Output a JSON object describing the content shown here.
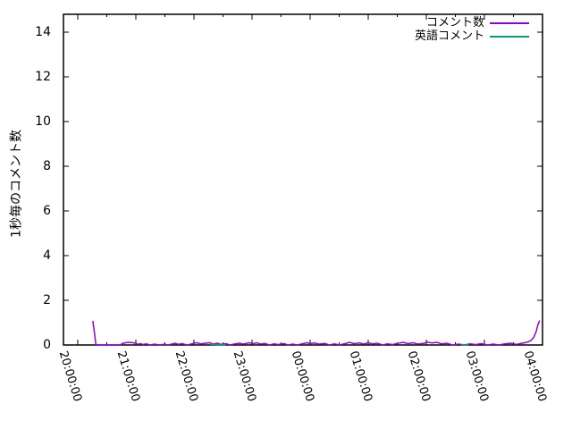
{
  "chart_data": {
    "type": "line",
    "title": "",
    "xlabel": "",
    "ylabel": "1秒毎のコメント数",
    "x_tick_labels": [
      "20:00:00",
      "21:00:00",
      "22:00:00",
      "23:00:00",
      "00:00:00",
      "01:00:00",
      "02:00:00",
      "03:00:00",
      "04:00:00"
    ],
    "y_tick_labels": [
      "0",
      "2",
      "4",
      "6",
      "8",
      "10",
      "12",
      "14"
    ],
    "ylim": [
      0,
      14.8
    ],
    "x_hours_range": [
      -0.25,
      8
    ],
    "grid": false,
    "legend_position": "top-right-inside",
    "series": [
      {
        "name": "コメント数",
        "color": "#9400d3",
        "points": [
          [
            0.26,
            1.08
          ],
          [
            0.285,
            0.6
          ],
          [
            0.31,
            0.05
          ],
          [
            0.33,
            0
          ],
          [
            0.5,
            0
          ],
          [
            0.74,
            0
          ],
          [
            0.76,
            0.06
          ],
          [
            0.82,
            0.1
          ],
          [
            0.88,
            0.12
          ],
          [
            0.95,
            0.1
          ],
          [
            1.0,
            0.08
          ],
          [
            1.03,
            0.03
          ],
          [
            1.08,
            0.06
          ],
          [
            1.12,
            0.02
          ],
          [
            1.18,
            0.05
          ],
          [
            1.25,
            0
          ],
          [
            1.32,
            0.04
          ],
          [
            1.4,
            0
          ],
          [
            1.48,
            0.03
          ],
          [
            1.55,
            0
          ],
          [
            1.62,
            0.04
          ],
          [
            1.68,
            0.08
          ],
          [
            1.73,
            0.03
          ],
          [
            1.8,
            0.06
          ],
          [
            1.88,
            0
          ],
          [
            1.95,
            0.04
          ],
          [
            2.0,
            0.08
          ],
          [
            2.05,
            0.1
          ],
          [
            2.12,
            0.05
          ],
          [
            2.2,
            0.08
          ],
          [
            2.28,
            0.1
          ],
          [
            2.33,
            0.04
          ],
          [
            2.4,
            0.08
          ],
          [
            2.47,
            0.03
          ],
          [
            2.55,
            0.06
          ],
          [
            2.62,
            0
          ],
          [
            2.7,
            0.05
          ],
          [
            2.78,
            0.08
          ],
          [
            2.85,
            0.04
          ],
          [
            2.95,
            0.1
          ],
          [
            3.02,
            0.06
          ],
          [
            3.08,
            0.1
          ],
          [
            3.15,
            0.04
          ],
          [
            3.22,
            0.07
          ],
          [
            3.3,
            0
          ],
          [
            3.38,
            0.05
          ],
          [
            3.45,
            0.02
          ],
          [
            3.55,
            0.06
          ],
          [
            3.62,
            0
          ],
          [
            3.7,
            0.04
          ],
          [
            3.78,
            0
          ],
          [
            3.85,
            0.05
          ],
          [
            3.95,
            0.1
          ],
          [
            4.0,
            0.06
          ],
          [
            4.08,
            0.09
          ],
          [
            4.15,
            0.04
          ],
          [
            4.25,
            0.07
          ],
          [
            4.33,
            0
          ],
          [
            4.42,
            0.05
          ],
          [
            4.5,
            0
          ],
          [
            4.6,
            0.06
          ],
          [
            4.68,
            0.12
          ],
          [
            4.75,
            0.06
          ],
          [
            4.85,
            0.09
          ],
          [
            4.92,
            0.04
          ],
          [
            5.0,
            0.1
          ],
          [
            5.08,
            0.05
          ],
          [
            5.15,
            0.08
          ],
          [
            5.25,
            0
          ],
          [
            5.33,
            0.05
          ],
          [
            5.42,
            0.02
          ],
          [
            5.5,
            0.07
          ],
          [
            5.6,
            0.12
          ],
          [
            5.68,
            0.06
          ],
          [
            5.78,
            0.1
          ],
          [
            5.85,
            0.04
          ],
          [
            5.95,
            0.07
          ],
          [
            6.02,
            0.13
          ],
          [
            6.1,
            0.09
          ],
          [
            6.18,
            0.12
          ],
          [
            6.27,
            0.05
          ],
          [
            6.35,
            0.08
          ],
          [
            6.45,
            0
          ],
          [
            6.55,
            0.04
          ],
          [
            6.65,
            0
          ],
          [
            6.75,
            0.05
          ],
          [
            6.85,
            0.02
          ],
          [
            6.95,
            0.06
          ],
          [
            7.05,
            0
          ],
          [
            7.15,
            0.04
          ],
          [
            7.25,
            0
          ],
          [
            7.35,
            0.05
          ],
          [
            7.45,
            0.08
          ],
          [
            7.55,
            0.03
          ],
          [
            7.65,
            0.08
          ],
          [
            7.73,
            0.12
          ],
          [
            7.8,
            0.2
          ],
          [
            7.85,
            0.35
          ],
          [
            7.89,
            0.6
          ],
          [
            7.92,
            0.9
          ],
          [
            7.95,
            1.1
          ]
        ]
      },
      {
        "name": "英語コメント",
        "color": "#009e73",
        "points": [
          [
            2.28,
            0.02
          ],
          [
            2.35,
            0.02
          ],
          [
            2.42,
            0
          ],
          [
            2.5,
            0.02
          ],
          [
            2.55,
            0
          ]
        ],
        "points2": [
          [
            6.6,
            0.02
          ],
          [
            6.68,
            0
          ],
          [
            6.73,
            0.02
          ]
        ]
      }
    ]
  },
  "colors": {
    "axis": "#000000",
    "background": "#ffffff",
    "series1": "#9400d3",
    "series2": "#009e73"
  }
}
